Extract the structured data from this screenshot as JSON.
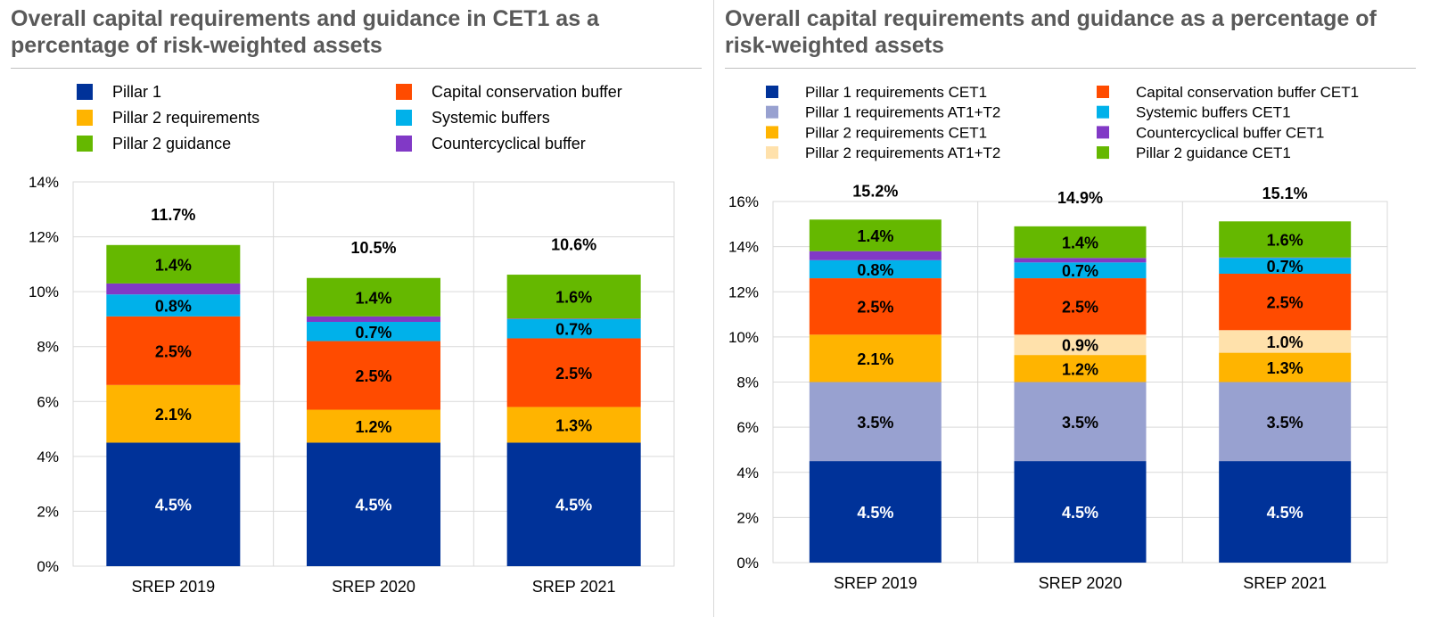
{
  "chart_data": [
    {
      "type": "bar",
      "stacked": true,
      "title": "Overall capital requirements and guidance in CET1 as a percentage of risk-weighted assets",
      "categories": [
        "SREP 2019",
        "SREP 2020",
        "SREP 2021"
      ],
      "ylim": [
        0,
        14
      ],
      "yticks": [
        "0%",
        "2%",
        "4%",
        "6%",
        "8%",
        "10%",
        "12%",
        "14%"
      ],
      "grid": true,
      "legend_position": "top",
      "series": [
        {
          "name": "Pillar 1",
          "color": "#003299",
          "values": [
            4.5,
            4.5,
            4.5
          ],
          "labels": [
            "4.5%",
            "4.5%",
            "4.5%"
          ],
          "label_color": "#ffffff"
        },
        {
          "name": "Pillar 2 requirements",
          "color": "#FFB400",
          "values": [
            2.1,
            1.2,
            1.3
          ],
          "labels": [
            "2.1%",
            "1.2%",
            "1.3%"
          ],
          "label_color": "#000000"
        },
        {
          "name": "Capital conservation buffer",
          "color": "#FF4B00",
          "values": [
            2.5,
            2.5,
            2.5
          ],
          "labels": [
            "2.5%",
            "2.5%",
            "2.5%"
          ],
          "label_color": "#000000"
        },
        {
          "name": "Systemic buffers",
          "color": "#00B1EA",
          "values": [
            0.8,
            0.7,
            0.7
          ],
          "labels": [
            "0.8%",
            "0.7%",
            "0.7%"
          ],
          "label_color": "#000000"
        },
        {
          "name": "Countercyclical buffer",
          "color": "#8139C6",
          "values": [
            0.4,
            0.2,
            0.02
          ],
          "labels": [
            "",
            "",
            ""
          ],
          "label_color": "#000000"
        },
        {
          "name": "Pillar 2 guidance",
          "color": "#65B800",
          "values": [
            1.4,
            1.4,
            1.6
          ],
          "labels": [
            "1.4%",
            "1.4%",
            "1.6%"
          ],
          "label_color": "#000000"
        }
      ],
      "legend_order": [
        "Pillar 1",
        "Capital conservation buffer",
        "Pillar 2 requirements",
        "Systemic buffers",
        "Pillar 2 guidance",
        "Countercyclical buffer"
      ],
      "totals": [
        11.7,
        10.5,
        10.6
      ],
      "total_labels": [
        "11.7%",
        "10.5%",
        "10.6%"
      ]
    },
    {
      "type": "bar",
      "stacked": true,
      "title": "Overall capital requirements and guidance as a percentage of risk-weighted assets",
      "categories": [
        "SREP 2019",
        "SREP 2020",
        "SREP 2021"
      ],
      "ylim": [
        0,
        16
      ],
      "yticks": [
        "0%",
        "2%",
        "4%",
        "6%",
        "8%",
        "10%",
        "12%",
        "14%",
        "16%"
      ],
      "grid": true,
      "legend_position": "top",
      "series": [
        {
          "name": "Pillar 1 requirements CET1",
          "color": "#003299",
          "values": [
            4.5,
            4.5,
            4.5
          ],
          "labels": [
            "4.5%",
            "4.5%",
            "4.5%"
          ],
          "label_color": "#ffffff"
        },
        {
          "name": "Pillar 1 requirements AT1+T2",
          "color": "#98A1D0",
          "values": [
            3.5,
            3.5,
            3.5
          ],
          "labels": [
            "3.5%",
            "3.5%",
            "3.5%"
          ],
          "label_color": "#000000"
        },
        {
          "name": "Pillar 2 requirements CET1",
          "color": "#FFB400",
          "values": [
            2.1,
            1.2,
            1.3
          ],
          "labels": [
            "2.1%",
            "1.2%",
            "1.3%"
          ],
          "label_color": "#000000"
        },
        {
          "name": "Pillar 2 requirements AT1+T2",
          "color": "#FFE1AB",
          "values": [
            0,
            0.9,
            1.0
          ],
          "labels": [
            "",
            "0.9%",
            "1.0%"
          ],
          "label_color": "#000000"
        },
        {
          "name": "Capital conservation buffer CET1",
          "color": "#FF4B00",
          "values": [
            2.5,
            2.5,
            2.5
          ],
          "labels": [
            "2.5%",
            "2.5%",
            "2.5%"
          ],
          "label_color": "#000000"
        },
        {
          "name": "Systemic buffers CET1",
          "color": "#00B1EA",
          "values": [
            0.8,
            0.7,
            0.7
          ],
          "labels": [
            "0.8%",
            "0.7%",
            "0.7%"
          ],
          "label_color": "#000000"
        },
        {
          "name": "Countercyclical buffer CET1",
          "color": "#8139C6",
          "values": [
            0.4,
            0.2,
            0.02
          ],
          "labels": [
            "",
            "",
            ""
          ],
          "label_color": "#000000"
        },
        {
          "name": "Pillar 2 guidance CET1",
          "color": "#65B800",
          "values": [
            1.4,
            1.4,
            1.6
          ],
          "labels": [
            "1.4%",
            "1.4%",
            "1.6%"
          ],
          "label_color": "#000000"
        }
      ],
      "legend_order": [
        "Pillar 1 requirements CET1",
        "Capital conservation buffer CET1",
        "Pillar 1 requirements AT1+T2",
        "Systemic buffers CET1",
        "Pillar 2 requirements CET1",
        "Countercyclical buffer CET1",
        "Pillar 2 requirements AT1+T2",
        "Pillar 2 guidance CET1"
      ],
      "totals": [
        15.2,
        14.9,
        15.1
      ],
      "total_labels": [
        "15.2%",
        "14.9%",
        "15.1%"
      ]
    }
  ]
}
